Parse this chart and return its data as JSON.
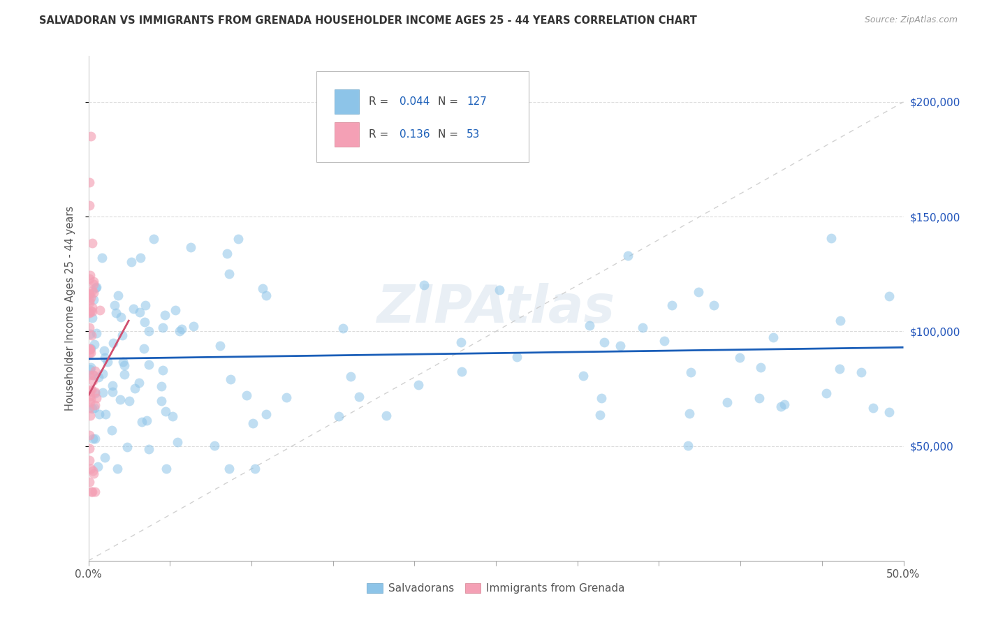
{
  "title": "SALVADORAN VS IMMIGRANTS FROM GRENADA HOUSEHOLDER INCOME AGES 25 - 44 YEARS CORRELATION CHART",
  "source": "Source: ZipAtlas.com",
  "ylabel": "Householder Income Ages 25 - 44 years",
  "ytick_labels": [
    "$50,000",
    "$100,000",
    "$150,000",
    "$200,000"
  ],
  "ytick_values": [
    50000,
    100000,
    150000,
    200000
  ],
  "ylim": [
    0,
    220000
  ],
  "xlim": [
    0.0,
    0.5
  ],
  "salvadoran_color": "#8dc4e8",
  "grenada_color": "#f4a0b5",
  "salvadoran_line_color": "#1a5eb8",
  "grenada_line_color": "#d05070",
  "diagonal_color": "#cccccc",
  "background_color": "#ffffff",
  "grid_color": "#cccccc",
  "watermark": "ZIPAtlas",
  "r_salvadoran": 0.044,
  "r_grenada": 0.136,
  "n_salvadoran": 127,
  "n_grenada": 53,
  "sal_seed": 101,
  "gren_seed": 202
}
